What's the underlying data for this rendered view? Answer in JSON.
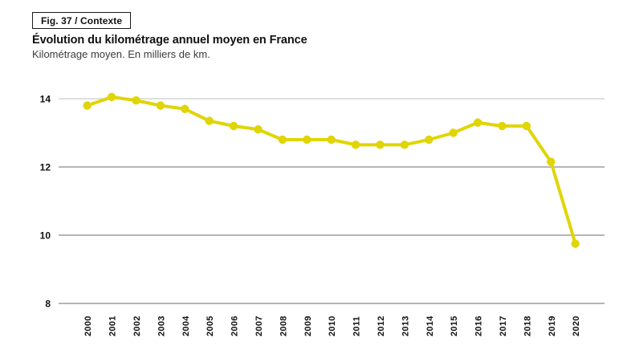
{
  "header": {
    "figure_label": "Fig. 37 / Contexte"
  },
  "chart_data": {
    "type": "line",
    "title": "Évolution du kilométrage annuel moyen en France",
    "subtitle": "Kilométrage moyen. En milliers de km.",
    "categories": [
      "2000",
      "2001",
      "2002",
      "2003",
      "2004",
      "2005",
      "2006",
      "2007",
      "2008",
      "2009",
      "2010",
      "2011",
      "2012",
      "2013",
      "2014",
      "2015",
      "2016",
      "2017",
      "2018",
      "2019",
      "2020"
    ],
    "values": [
      13.8,
      14.05,
      13.95,
      13.8,
      13.7,
      13.35,
      13.2,
      13.1,
      12.8,
      12.8,
      12.8,
      12.65,
      12.65,
      12.65,
      12.8,
      13.0,
      13.3,
      13.2,
      13.2,
      12.15,
      9.75
    ],
    "ylim": [
      8,
      14.55
    ],
    "yticks": [
      8,
      10,
      12,
      14
    ],
    "grid": "horizontal-only",
    "legend_position": "none",
    "colors": {
      "line": "#e0d506",
      "marker": "#e0d506",
      "grid": "#b5b5b5",
      "grid_top": "#cdcdcd",
      "text": "#111111"
    }
  }
}
